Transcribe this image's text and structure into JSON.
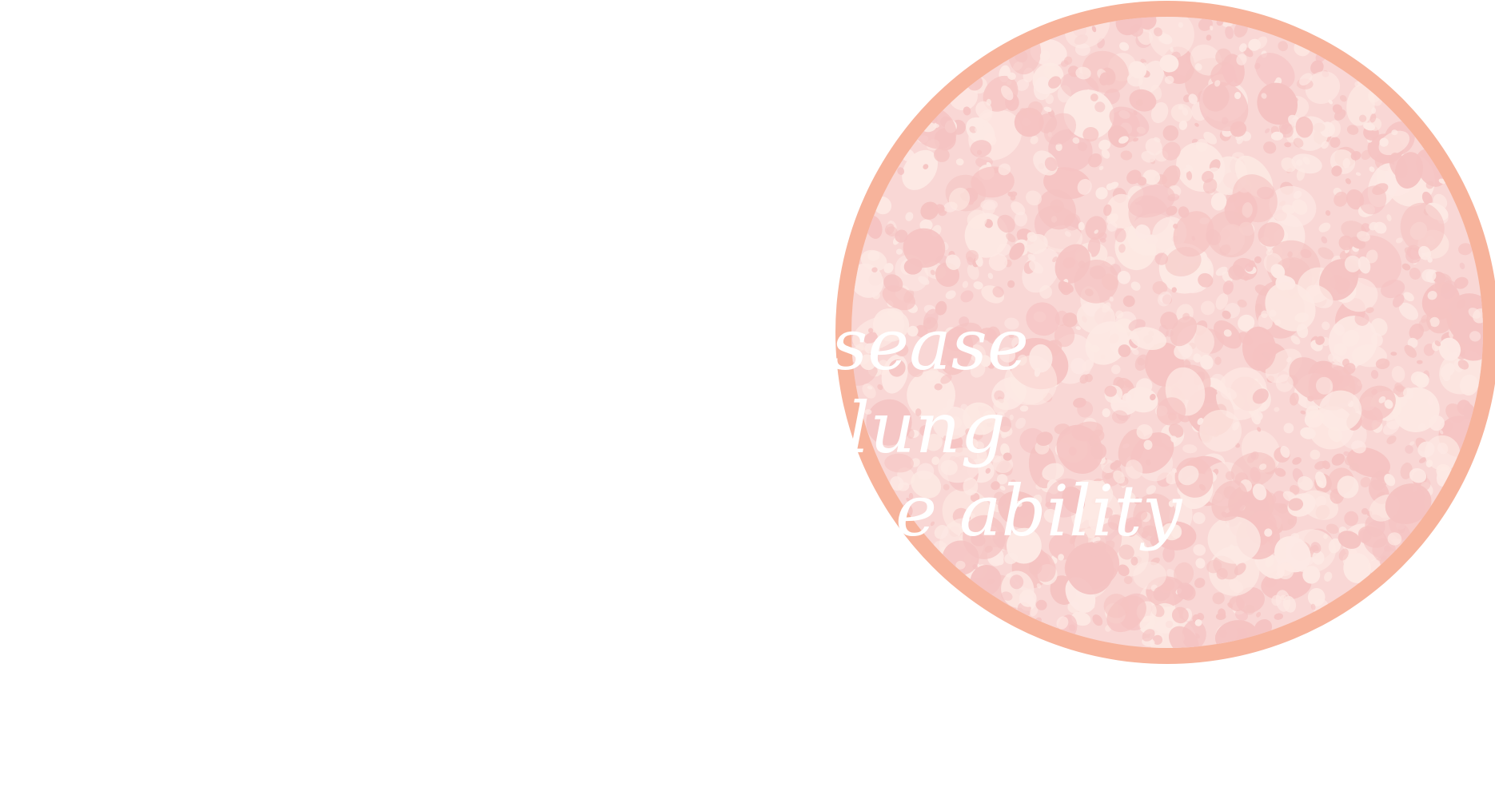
{
  "colors": {
    "background": "#ffffff",
    "ring": "#f7b39b",
    "disc_base": "#f9d7d5",
    "speckle_dark": "#f5c3c2",
    "speckle_light": "#fde9e4",
    "text": "#ffffff"
  },
  "tagline": {
    "lines": [
      "sease",
      "lung",
      "e ability"
    ]
  },
  "texture": {
    "speckle_count": 1400,
    "seed": 17
  }
}
